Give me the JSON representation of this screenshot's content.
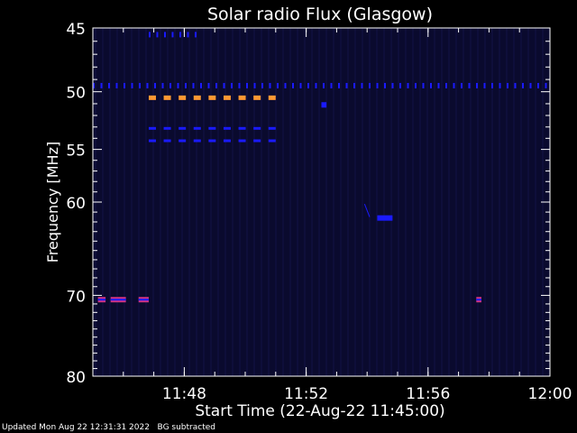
{
  "chart_data": {
    "type": "heatmap",
    "title": "Solar radio Flux (Glasgow)",
    "xlabel": "Start Time (22-Aug-22 11:45:00)",
    "ylabel": "Frequency [MHz]",
    "x_range": [
      "11:45",
      "12:00"
    ],
    "y_range": [
      45,
      80
    ],
    "y_scale": "log",
    "x_ticks": [
      "11:48",
      "11:52",
      "11:56",
      "12:00"
    ],
    "y_ticks": [
      45,
      50,
      55,
      60,
      70,
      80
    ],
    "colors": {
      "background": "#000000",
      "field": "#0a0a2e",
      "low": "#1a1aff",
      "mid": "#cc3380",
      "high": "#ff9933",
      "axis": "#ffffff"
    },
    "features": [
      {
        "name": "interference-50-5",
        "freq": 50.5,
        "t_start": "11:46:50",
        "t_end": "11:51:00",
        "level": "high",
        "pattern": "dashed"
      },
      {
        "name": "interference-49-5",
        "freq": 49.5,
        "t_start": "11:45:00",
        "t_end": "12:00:00",
        "level": "low",
        "pattern": "dotted"
      },
      {
        "name": "interference-53-2",
        "freq": 53.2,
        "t_start": "11:46:50",
        "t_end": "11:51:00",
        "level": "low",
        "pattern": "dashed"
      },
      {
        "name": "interference-54-3",
        "freq": 54.3,
        "t_start": "11:46:50",
        "t_end": "11:51:00",
        "level": "low",
        "pattern": "dashed"
      },
      {
        "name": "interference-45-5",
        "freq": 45.5,
        "t_start": "11:46:50",
        "t_end": "11:48:30",
        "level": "low",
        "pattern": "dotted"
      },
      {
        "name": "burst-70-5-a",
        "freq": 70.5,
        "t_start": "11:45:10",
        "t_end": "11:45:25",
        "level": "mid",
        "pattern": "solid"
      },
      {
        "name": "burst-70-5-b",
        "freq": 70.5,
        "t_start": "11:45:35",
        "t_end": "11:46:05",
        "level": "mid",
        "pattern": "solid"
      },
      {
        "name": "burst-70-5-c",
        "freq": 70.5,
        "t_start": "11:46:30",
        "t_end": "11:46:50",
        "level": "mid",
        "pattern": "solid"
      },
      {
        "name": "burst-70-5-d",
        "freq": 70.5,
        "t_start": "11:57:35",
        "t_end": "11:57:45",
        "level": "mid",
        "pattern": "solid"
      },
      {
        "name": "spot-61-6",
        "freq": 61.6,
        "t_start": "11:54:20",
        "t_end": "11:54:50",
        "level": "low",
        "pattern": "solid"
      },
      {
        "name": "drift-60-61",
        "freq": 60.2,
        "freq_end": 61.5,
        "t_start": "11:53:55",
        "t_end": "11:54:05",
        "level": "low",
        "pattern": "line"
      },
      {
        "name": "spot-51-1",
        "freq": 51.1,
        "t_start": "11:52:30",
        "t_end": "11:52:40",
        "level": "low",
        "pattern": "solid"
      }
    ]
  },
  "footer": {
    "updated": "Updated Mon Aug 22 12:31:31 2022",
    "note": "BG subtracted"
  }
}
